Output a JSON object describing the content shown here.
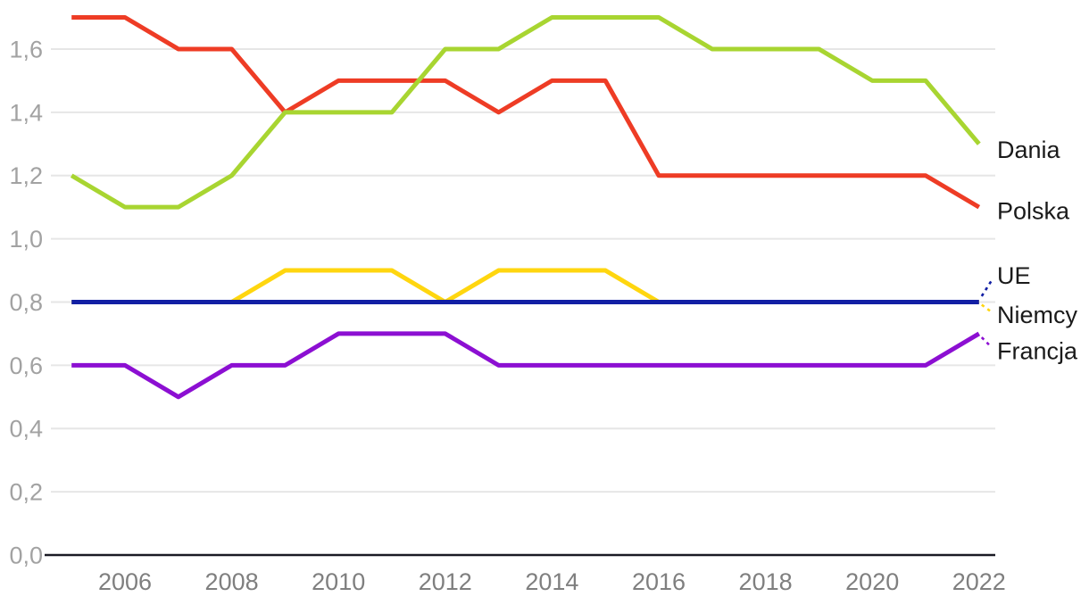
{
  "chart_data": {
    "type": "line",
    "title": "",
    "xlabel": "",
    "ylabel": "",
    "decimal_separator": ",",
    "x": [
      2005,
      2006,
      2007,
      2008,
      2009,
      2010,
      2011,
      2012,
      2013,
      2014,
      2015,
      2016,
      2017,
      2018,
      2019,
      2020,
      2021,
      2022
    ],
    "xtick_labels": [
      "2006",
      "2008",
      "2010",
      "2012",
      "2014",
      "2016",
      "2018",
      "2020",
      "2022"
    ],
    "yticks": [
      0.0,
      0.2,
      0.4,
      0.6,
      0.8,
      1.0,
      1.2,
      1.4,
      1.6
    ],
    "ytick_labels": [
      "0,0",
      "0,2",
      "0,4",
      "0,6",
      "0,8",
      "1,0",
      "1,2",
      "1,4",
      "1,6"
    ],
    "ylim": [
      0,
      1.75
    ],
    "grid": true,
    "legend_position": "line-end-labels-right",
    "series": [
      {
        "name": "Polska",
        "color": "#ee3c25",
        "label_dy": 4,
        "leader": false,
        "values": [
          1.7,
          1.7,
          1.6,
          1.6,
          1.4,
          1.5,
          1.5,
          1.5,
          1.4,
          1.5,
          1.5,
          1.2,
          1.2,
          1.2,
          1.2,
          1.2,
          1.2,
          1.1
        ]
      },
      {
        "name": "Dania",
        "color": "#a8d531",
        "label_dy": 6,
        "leader": false,
        "values": [
          1.2,
          1.1,
          1.1,
          1.2,
          1.4,
          1.4,
          1.4,
          1.6,
          1.6,
          1.7,
          1.7,
          1.7,
          1.6,
          1.6,
          1.6,
          1.5,
          1.5,
          1.3
        ]
      },
      {
        "name": "Niemcy",
        "color": "#ffd60f",
        "label_dy": 14,
        "leader": true,
        "values": [
          0.8,
          0.8,
          0.8,
          0.8,
          0.9,
          0.9,
          0.9,
          0.8,
          0.9,
          0.9,
          0.9,
          0.8,
          0.8,
          0.8,
          0.8,
          0.8,
          0.8,
          0.8
        ]
      },
      {
        "name": "UE",
        "color": "#121fa4",
        "label_dy": -30,
        "leader": true,
        "values": [
          0.8,
          0.8,
          0.8,
          0.8,
          0.8,
          0.8,
          0.8,
          0.8,
          0.8,
          0.8,
          0.8,
          0.8,
          0.8,
          0.8,
          0.8,
          0.8,
          0.8,
          0.8
        ]
      },
      {
        "name": "Francja",
        "color": "#8c0fd2",
        "label_dy": 19,
        "leader": true,
        "values": [
          0.6,
          0.6,
          0.5,
          0.6,
          0.6,
          0.7,
          0.7,
          0.7,
          0.6,
          0.6,
          0.6,
          0.6,
          0.6,
          0.6,
          0.6,
          0.6,
          0.6,
          0.7
        ]
      }
    ],
    "colors": {
      "grid": "#e6e6e6",
      "axis": "#1a1a24",
      "ytick_text": "#a2a2a2",
      "xtick_text": "#7f7f7f",
      "series_label_text": "#1a1a1a",
      "background": "#ffffff"
    }
  }
}
